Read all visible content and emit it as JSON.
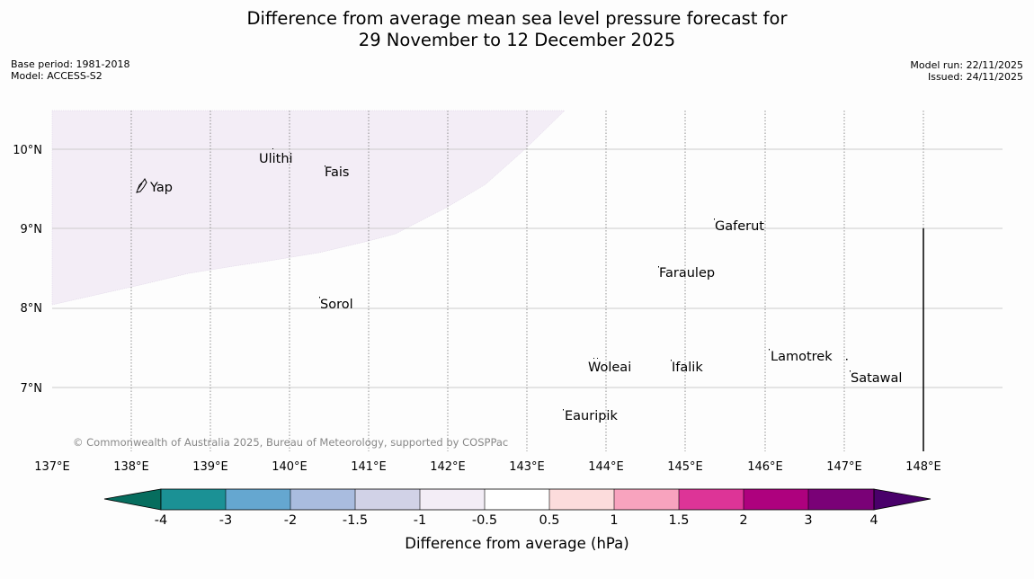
{
  "title": {
    "line1": "Difference from average mean sea level pressure forecast for",
    "line2": "29 November to 12 December 2025"
  },
  "info_left": {
    "base_period": "Base period: 1981-2018",
    "model": "Model: ACCESS-S2"
  },
  "info_right": {
    "model_run": "Model run: 22/11/2025",
    "issued": "Issued: 24/11/2025"
  },
  "map": {
    "lon_labels": [
      "137°E",
      "138°E",
      "139°E",
      "140°E",
      "141°E",
      "142°E",
      "143°E",
      "144°E",
      "145°E",
      "146°E",
      "147°E",
      "148°E"
    ],
    "lat_labels": [
      "10°N",
      "9°N",
      "8°N",
      "7°N"
    ],
    "places": [
      "Yap",
      "Ulithi",
      "Fais",
      "Gaferut",
      "Faraulep",
      "Sorol",
      "Lamotrek",
      "Woleai",
      "Ifalik",
      "Satawal",
      "Eauripik"
    ],
    "copyright": "© Commonwealth of Australia 2025, Bureau of Meteorology, supported by COSPPac"
  },
  "colorbar": {
    "label": "Difference from average (hPa)",
    "ticks": [
      "-4",
      "-3",
      "-2",
      "-1.5",
      "-1",
      "-0.5",
      "0.5",
      "1",
      "1.5",
      "2",
      "3",
      "4"
    ],
    "colors": [
      "#066d5e",
      "#1b9195",
      "#65a7d0",
      "#a9bcdf",
      "#d1d2e7",
      "#f3edf6",
      "#ffffff",
      "#fcdcdc",
      "#f8a3be",
      "#dd3497",
      "#ae017e",
      "#7a0177",
      "#49006a"
    ]
  }
}
